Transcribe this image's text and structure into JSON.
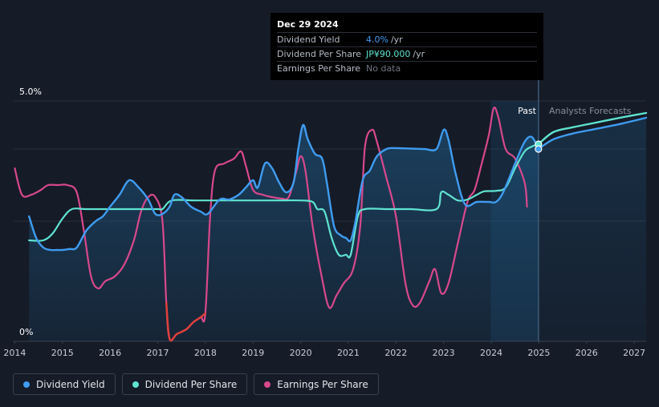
{
  "tooltip": {
    "date": "Dec 29 2024",
    "rows": [
      {
        "name": "Dividend Yield",
        "value": "4.0%",
        "unit": "/yr",
        "color": "#3f9cf0"
      },
      {
        "name": "Dividend Per Share",
        "value": "JP¥90.000",
        "unit": "/yr",
        "color": "#5fe3d1"
      },
      {
        "name": "Earnings Per Share",
        "value": "No data",
        "unit": "",
        "color": "#6e7480"
      }
    ]
  },
  "period_labels": {
    "past": "Past",
    "forecast": "Analysts Forecasts"
  },
  "legend": [
    {
      "label": "Dividend Yield",
      "color": "#3f9cf0"
    },
    {
      "label": "Dividend Per Share",
      "color": "#5fe3d1"
    },
    {
      "label": "Earnings Per Share",
      "color": "#d8488c"
    }
  ],
  "chart_data": {
    "type": "line",
    "x_ticks": [
      "2014",
      "2015",
      "2016",
      "2017",
      "2018",
      "2019",
      "2020",
      "2021",
      "2022",
      "2023",
      "2024",
      "2025",
      "2026",
      "2027"
    ],
    "y_ticks": [
      "0%",
      "5.0%"
    ],
    "xlim": [
      2013.96,
      2027.25
    ],
    "ylim": [
      0,
      5.0
    ],
    "grid": true,
    "past_forecast_boundary": 2024.99,
    "series": [
      {
        "name": "Dividend Yield",
        "color": "#3f9cf0",
        "unit": "%",
        "points": [
          [
            2014.3,
            2.6
          ],
          [
            2014.45,
            2.15
          ],
          [
            2014.6,
            1.95
          ],
          [
            2014.75,
            1.9
          ],
          [
            2014.9,
            1.9
          ],
          [
            2015.0,
            1.9
          ],
          [
            2015.15,
            1.92
          ],
          [
            2015.3,
            1.95
          ],
          [
            2015.5,
            2.3
          ],
          [
            2015.7,
            2.5
          ],
          [
            2015.85,
            2.6
          ],
          [
            2016.0,
            2.8
          ],
          [
            2016.2,
            3.05
          ],
          [
            2016.4,
            3.35
          ],
          [
            2016.6,
            3.2
          ],
          [
            2016.8,
            2.95
          ],
          [
            2016.95,
            2.65
          ],
          [
            2017.1,
            2.65
          ],
          [
            2017.25,
            2.8
          ],
          [
            2017.35,
            3.05
          ],
          [
            2017.5,
            3.0
          ],
          [
            2017.7,
            2.8
          ],
          [
            2017.9,
            2.7
          ],
          [
            2018.05,
            2.65
          ],
          [
            2018.3,
            2.95
          ],
          [
            2018.5,
            2.95
          ],
          [
            2018.7,
            3.05
          ],
          [
            2018.85,
            3.2
          ],
          [
            2019.0,
            3.35
          ],
          [
            2019.1,
            3.2
          ],
          [
            2019.25,
            3.7
          ],
          [
            2019.4,
            3.6
          ],
          [
            2019.55,
            3.3
          ],
          [
            2019.7,
            3.1
          ],
          [
            2019.85,
            3.3
          ],
          [
            2019.95,
            4.0
          ],
          [
            2020.05,
            4.5
          ],
          [
            2020.15,
            4.2
          ],
          [
            2020.3,
            3.9
          ],
          [
            2020.45,
            3.8
          ],
          [
            2020.55,
            3.3
          ],
          [
            2020.7,
            2.4
          ],
          [
            2020.85,
            2.2
          ],
          [
            2020.95,
            2.15
          ],
          [
            2021.05,
            2.1
          ],
          [
            2021.15,
            2.5
          ],
          [
            2021.3,
            3.35
          ],
          [
            2021.45,
            3.55
          ],
          [
            2021.6,
            3.85
          ],
          [
            2021.8,
            4.0
          ],
          [
            2021.95,
            4.02
          ],
          [
            2022.3,
            4.01
          ],
          [
            2022.6,
            4.0
          ],
          [
            2022.85,
            4.0
          ],
          [
            2023.0,
            4.4
          ],
          [
            2023.1,
            4.2
          ],
          [
            2023.25,
            3.5
          ],
          [
            2023.45,
            2.85
          ],
          [
            2023.7,
            2.9
          ],
          [
            2023.95,
            2.9
          ],
          [
            2024.1,
            2.9
          ],
          [
            2024.25,
            3.1
          ],
          [
            2024.5,
            3.7
          ],
          [
            2024.7,
            4.15
          ],
          [
            2024.85,
            4.25
          ],
          [
            2024.99,
            4.0
          ]
        ]
      },
      {
        "name": "Dividend Yield Forecast",
        "color": "#3f9cf0",
        "unit": "%",
        "points": [
          [
            2024.99,
            4.0
          ],
          [
            2025.3,
            4.2
          ],
          [
            2025.7,
            4.32
          ],
          [
            2026.2,
            4.42
          ],
          [
            2026.7,
            4.52
          ],
          [
            2027.25,
            4.65
          ]
        ]
      },
      {
        "name": "Dividend Per Share",
        "color": "#5fe3d1",
        "unit": "JP¥",
        "points": [
          [
            2014.3,
            2.1
          ],
          [
            2014.6,
            2.1
          ],
          [
            2014.8,
            2.25
          ],
          [
            2015.0,
            2.55
          ],
          [
            2015.2,
            2.75
          ],
          [
            2015.5,
            2.75
          ],
          [
            2016.0,
            2.75
          ],
          [
            2016.5,
            2.75
          ],
          [
            2017.0,
            2.75
          ],
          [
            2017.1,
            2.75
          ],
          [
            2017.3,
            2.93
          ],
          [
            2017.8,
            2.93
          ],
          [
            2018.5,
            2.93
          ],
          [
            2019.0,
            2.93
          ],
          [
            2019.5,
            2.93
          ],
          [
            2020.0,
            2.93
          ],
          [
            2020.25,
            2.9
          ],
          [
            2020.35,
            2.75
          ],
          [
            2020.5,
            2.7
          ],
          [
            2020.65,
            2.15
          ],
          [
            2020.8,
            1.8
          ],
          [
            2020.95,
            1.8
          ],
          [
            2021.05,
            1.8
          ],
          [
            2021.2,
            2.6
          ],
          [
            2021.35,
            2.75
          ],
          [
            2021.8,
            2.75
          ],
          [
            2022.3,
            2.75
          ],
          [
            2022.85,
            2.75
          ],
          [
            2022.95,
            3.1
          ],
          [
            2023.1,
            3.05
          ],
          [
            2023.3,
            2.93
          ],
          [
            2023.5,
            2.95
          ],
          [
            2023.7,
            3.05
          ],
          [
            2023.85,
            3.12
          ],
          [
            2024.1,
            3.13
          ],
          [
            2024.3,
            3.2
          ],
          [
            2024.5,
            3.6
          ],
          [
            2024.7,
            3.95
          ],
          [
            2024.85,
            4.05
          ],
          [
            2024.99,
            4.1
          ]
        ]
      },
      {
        "name": "Dividend Per Share Forecast",
        "color": "#5fe3d1",
        "unit": "JP¥",
        "points": [
          [
            2024.99,
            4.1
          ],
          [
            2025.3,
            4.35
          ],
          [
            2025.7,
            4.45
          ],
          [
            2026.2,
            4.55
          ],
          [
            2026.7,
            4.65
          ],
          [
            2027.25,
            4.75
          ]
        ]
      },
      {
        "name": "Earnings Per Share",
        "color": "#d8488c",
        "negative_color": "#e0403a",
        "unit": "JP¥",
        "points": [
          [
            2014.0,
            3.6
          ],
          [
            2014.15,
            3.05
          ],
          [
            2014.35,
            3.05
          ],
          [
            2014.55,
            3.15
          ],
          [
            2014.7,
            3.25
          ],
          [
            2014.9,
            3.25
          ],
          [
            2015.1,
            3.25
          ],
          [
            2015.3,
            3.1
          ],
          [
            2015.45,
            2.3
          ],
          [
            2015.6,
            1.35
          ],
          [
            2015.75,
            1.1
          ],
          [
            2015.9,
            1.25
          ],
          [
            2016.1,
            1.35
          ],
          [
            2016.3,
            1.6
          ],
          [
            2016.5,
            2.1
          ],
          [
            2016.65,
            2.7
          ],
          [
            2016.8,
            3.0
          ],
          [
            2016.95,
            3.0
          ],
          [
            2017.1,
            2.5
          ],
          [
            2017.18,
            0.8
          ],
          [
            2017.25,
            0.05
          ],
          [
            2017.4,
            0.15
          ],
          [
            2017.6,
            0.25
          ],
          [
            2017.75,
            0.4
          ],
          [
            2017.9,
            0.5
          ],
          [
            2018.0,
            0.58
          ],
          [
            2018.1,
            2.6
          ],
          [
            2018.2,
            3.55
          ],
          [
            2018.4,
            3.7
          ],
          [
            2018.6,
            3.8
          ],
          [
            2018.75,
            3.95
          ],
          [
            2018.85,
            3.65
          ],
          [
            2019.0,
            3.15
          ],
          [
            2019.2,
            3.05
          ],
          [
            2019.4,
            3.0
          ],
          [
            2019.6,
            2.97
          ],
          [
            2019.75,
            3.0
          ],
          [
            2019.9,
            3.5
          ],
          [
            2020.0,
            3.85
          ],
          [
            2020.1,
            3.55
          ],
          [
            2020.25,
            2.4
          ],
          [
            2020.45,
            1.3
          ],
          [
            2020.6,
            0.7
          ],
          [
            2020.75,
            0.95
          ],
          [
            2020.9,
            1.2
          ],
          [
            2021.1,
            1.5
          ],
          [
            2021.25,
            2.4
          ],
          [
            2021.35,
            4.05
          ],
          [
            2021.5,
            4.4
          ],
          [
            2021.6,
            4.15
          ],
          [
            2021.8,
            3.4
          ],
          [
            2022.0,
            2.6
          ],
          [
            2022.2,
            1.2
          ],
          [
            2022.35,
            0.75
          ],
          [
            2022.5,
            0.8
          ],
          [
            2022.7,
            1.25
          ],
          [
            2022.82,
            1.5
          ],
          [
            2022.95,
            1.0
          ],
          [
            2023.1,
            1.2
          ],
          [
            2023.3,
            2.05
          ],
          [
            2023.5,
            2.9
          ],
          [
            2023.65,
            3.15
          ],
          [
            2023.8,
            3.7
          ],
          [
            2023.95,
            4.3
          ],
          [
            2024.05,
            4.85
          ],
          [
            2024.15,
            4.65
          ],
          [
            2024.3,
            4.0
          ],
          [
            2024.5,
            3.8
          ],
          [
            2024.7,
            3.3
          ],
          [
            2024.75,
            2.8
          ]
        ]
      }
    ]
  }
}
